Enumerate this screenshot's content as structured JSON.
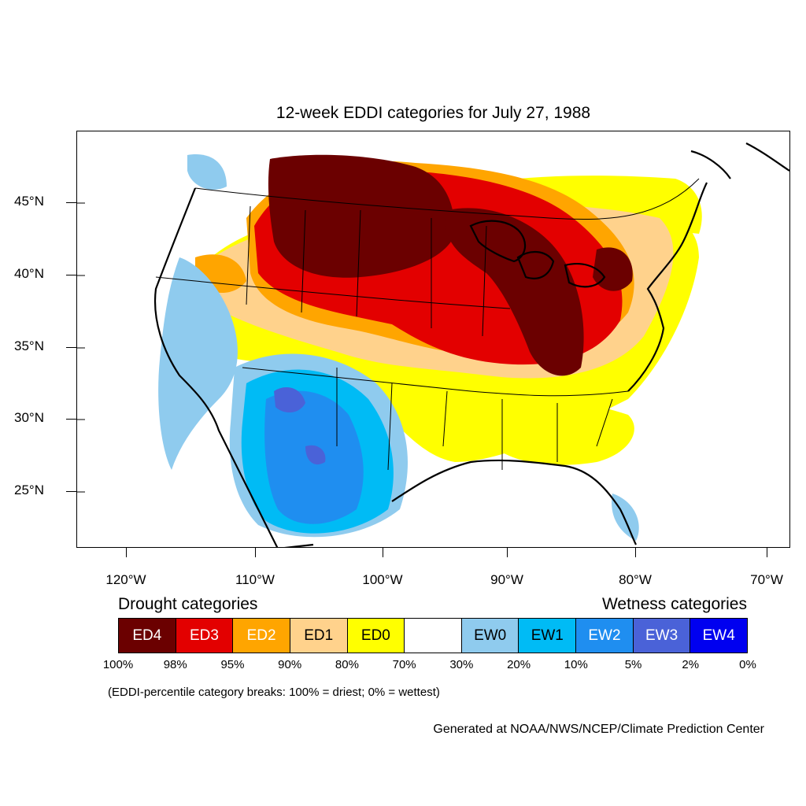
{
  "title": "12-week EDDI categories for July 27, 1988",
  "latitude_labels": [
    "45°N",
    "40°N",
    "35°N",
    "30°N",
    "25°N"
  ],
  "longitude_labels": [
    "120°W",
    "110°W",
    "100°W",
    "90°W",
    "80°W",
    "70°W"
  ],
  "legend": {
    "drought_heading": "Drought categories",
    "wetness_heading": "Wetness categories",
    "categories": [
      {
        "label": "ED4",
        "color": "#6b0000",
        "text_color": "#ffffff"
      },
      {
        "label": "ED3",
        "color": "#e30000",
        "text_color": "#ffffff"
      },
      {
        "label": "ED2",
        "color": "#ffa500",
        "text_color": "#ffffff"
      },
      {
        "label": "ED1",
        "color": "#ffd28c",
        "text_color": "#000000"
      },
      {
        "label": "ED0",
        "color": "#ffff00",
        "text_color": "#000000"
      },
      {
        "label": "",
        "color": "#ffffff",
        "text_color": "#000000"
      },
      {
        "label": "EW0",
        "color": "#8fcbee",
        "text_color": "#000000"
      },
      {
        "label": "EW1",
        "color": "#00bbf5",
        "text_color": "#000000"
      },
      {
        "label": "EW2",
        "color": "#1f8ef0",
        "text_color": "#ffffff"
      },
      {
        "label": "EW3",
        "color": "#4a62d8",
        "text_color": "#ffffff"
      },
      {
        "label": "EW4",
        "color": "#0000f0",
        "text_color": "#ffffff"
      }
    ],
    "breaks": [
      "100%",
      "98%",
      "95%",
      "90%",
      "80%",
      "70%",
      "30%",
      "20%",
      "10%",
      "5%",
      "2%",
      "0%"
    ]
  },
  "note": "(EDDI-percentile category breaks: 100% = driest; 0% = wettest)",
  "credit": "Generated at NOAA/NWS/NCEP/Climate Prediction Center"
}
